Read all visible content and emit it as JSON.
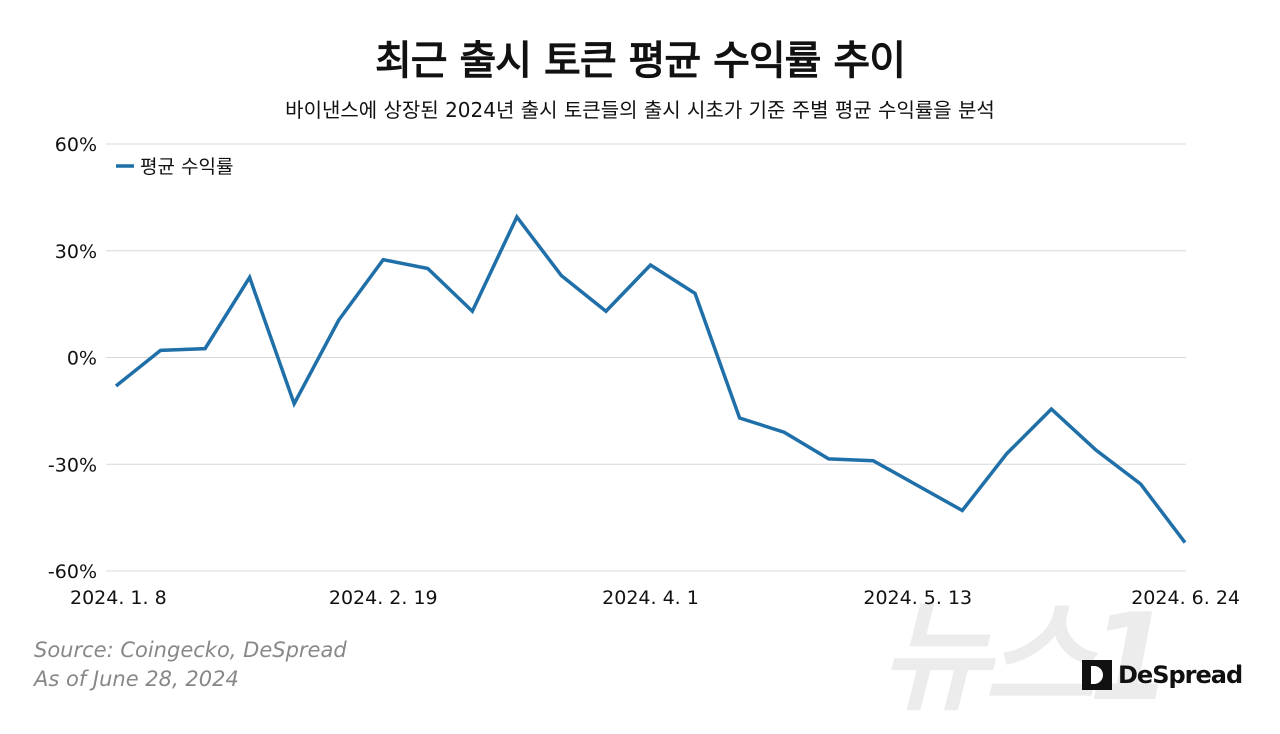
{
  "header": {
    "title": "최근 출시 토큰 평균 수익률 추이",
    "subtitle": "바이낸스에 상장된 2024년 출시 토큰들의 출시 시초가 기준 주별 평균 수익률을 분석"
  },
  "chart_data": {
    "type": "line",
    "title": "최근 출시 토큰 평균 수익률 추이",
    "subtitle": "바이낸스에 상장된 2024년 출시 토큰들의 출시 시초가 기준 주별 평균 수익률을 분석",
    "x": [
      "2024-01-08",
      "2024-01-15",
      "2024-01-22",
      "2024-01-29",
      "2024-02-05",
      "2024-02-12",
      "2024-02-19",
      "2024-02-26",
      "2024-03-04",
      "2024-03-11",
      "2024-03-18",
      "2024-03-25",
      "2024-04-01",
      "2024-04-08",
      "2024-04-15",
      "2024-04-22",
      "2024-04-29",
      "2024-05-06",
      "2024-05-13",
      "2024-05-20",
      "2024-05-27",
      "2024-06-03",
      "2024-06-10",
      "2024-06-17",
      "2024-06-24"
    ],
    "series": [
      {
        "name": "평균 수익률",
        "color": "#1f6fa8",
        "values": [
          -8,
          2,
          2.5,
          22.5,
          -13,
          10.5,
          27.5,
          25,
          13,
          39.5,
          23,
          13,
          26,
          18,
          -17,
          -21,
          -28.5,
          -29,
          -36,
          -43,
          -27,
          -14.5,
          -26,
          -35.5,
          -52
        ]
      }
    ],
    "xticks": [
      {
        "index": 0,
        "label": "2024. 1. 8"
      },
      {
        "index": 6,
        "label": "2024. 2. 19"
      },
      {
        "index": 12,
        "label": "2024. 4. 1"
      },
      {
        "index": 18,
        "label": "2024. 5. 13"
      },
      {
        "index": 24,
        "label": "2024. 6. 24"
      }
    ],
    "yticks": [
      {
        "value": 60,
        "label": "60%"
      },
      {
        "value": 30,
        "label": "30%"
      },
      {
        "value": 0,
        "label": "0%"
      },
      {
        "value": -30,
        "label": "-30%"
      },
      {
        "value": -60,
        "label": "-60%"
      }
    ],
    "ylim": [
      -60,
      60
    ],
    "grid": "horizontal",
    "legend": "top-left"
  },
  "footer": {
    "source": "Source: Coingecko, DeSpread",
    "as_of": "As of June 28, 2024",
    "brand": "DeSpread"
  },
  "watermark": "뉴스1"
}
